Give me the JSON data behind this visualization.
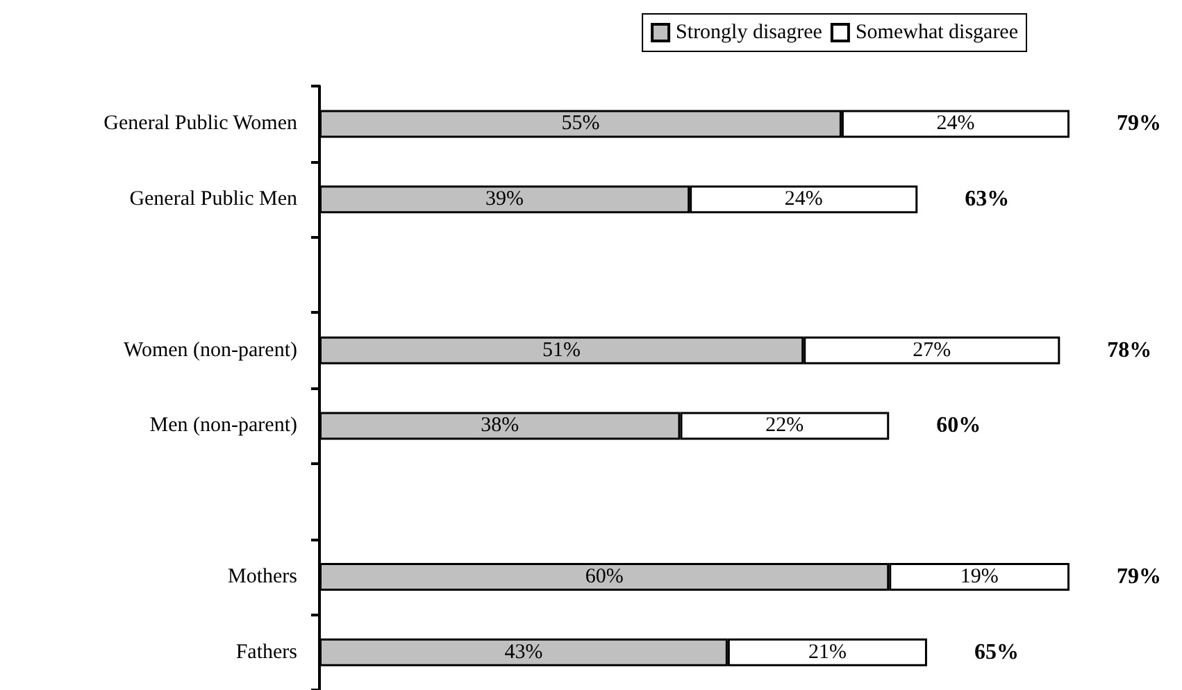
{
  "chart_data": {
    "type": "bar",
    "orientation": "horizontal",
    "stacked": true,
    "legend": "top right",
    "tick_labels": "y",
    "categories": [
      "General Public Women",
      "General Public Men",
      null,
      "Women (non-parent)",
      "Men (non-parent)",
      null,
      "Mothers",
      "Fathers"
    ],
    "series": [
      {
        "name": "Strongly disagree",
        "color": "#c0c0c0",
        "values": [
          55,
          39,
          null,
          51,
          38,
          null,
          60,
          43
        ],
        "value_labels": [
          "55%",
          "39%",
          null,
          "51%",
          "38%",
          null,
          "60%",
          "43%"
        ]
      },
      {
        "name": "Somewhat disgaree",
        "color": "#ffffff",
        "values": [
          24,
          24,
          null,
          27,
          22,
          null,
          19,
          21
        ],
        "value_labels": [
          "24%",
          "24%",
          null,
          "27%",
          "22%",
          null,
          "19%",
          "21%"
        ]
      }
    ],
    "totals": [
      "79%",
      "63%",
      null,
      "78%",
      "60%",
      null,
      "79%",
      "65%"
    ]
  }
}
